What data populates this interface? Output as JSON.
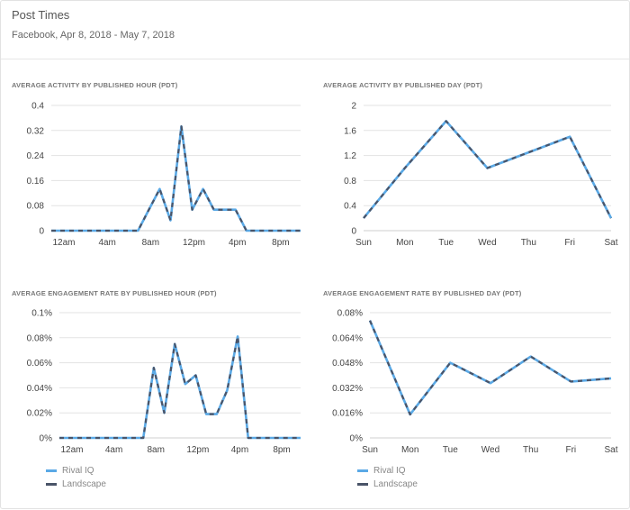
{
  "header": {
    "title": "Post Times",
    "subtitle": "Facebook, Apr 8, 2018 - May 7, 2018"
  },
  "colors": {
    "rival_iq": "#5aa9e6",
    "landscape": "#4a5468",
    "grid": "#e3e3e3",
    "axis": "#cfcfcf"
  },
  "legend": [
    {
      "label": "Rival IQ",
      "color": "#5aa9e6"
    },
    {
      "label": "Landscape",
      "color": "#4a5468"
    }
  ],
  "chart_data": [
    {
      "type": "line",
      "title": "AVERAGE ACTIVITY BY PUBLISHED HOUR (PDT)",
      "x": [
        0,
        1,
        2,
        3,
        4,
        5,
        6,
        7,
        8,
        9,
        10,
        11,
        12,
        13,
        14,
        15,
        16,
        17,
        18,
        19,
        20,
        21,
        22,
        23
      ],
      "x_ticks": [
        "12am",
        "4am",
        "8am",
        "12pm",
        "4pm",
        "8pm"
      ],
      "y_ticks": [
        "0",
        "0.08",
        "0.16",
        "0.24",
        "0.32",
        "0.4"
      ],
      "ylim": [
        0,
        0.4
      ],
      "series": [
        {
          "name": "Rival IQ",
          "values": [
            0,
            0,
            0,
            0,
            0,
            0,
            0,
            0,
            0,
            0.067,
            0.133,
            0.033,
            0.333,
            0.067,
            0.133,
            0.067,
            0.067,
            0.067,
            0,
            0,
            0,
            0,
            0,
            0
          ]
        },
        {
          "name": "Landscape",
          "values": [
            0,
            0,
            0,
            0,
            0,
            0,
            0,
            0,
            0,
            0.067,
            0.133,
            0.033,
            0.333,
            0.067,
            0.133,
            0.067,
            0.067,
            0.067,
            0,
            0,
            0,
            0,
            0,
            0
          ]
        }
      ]
    },
    {
      "type": "line",
      "title": "AVERAGE ACTIVITY BY PUBLISHED DAY (PDT)",
      "categories": [
        "Sun",
        "Mon",
        "Tue",
        "Wed",
        "Thu",
        "Fri",
        "Sat"
      ],
      "y_ticks": [
        "0",
        "0.4",
        "0.8",
        "1.2",
        "1.6",
        "2"
      ],
      "ylim": [
        0,
        2
      ],
      "series": [
        {
          "name": "Rival IQ",
          "values": [
            0.2,
            1.0,
            1.75,
            1.0,
            1.25,
            1.5,
            0.2
          ]
        },
        {
          "name": "Landscape",
          "values": [
            0.2,
            1.0,
            1.75,
            1.0,
            1.25,
            1.5,
            0.2
          ]
        }
      ]
    },
    {
      "type": "line",
      "title": "AVERAGE ENGAGEMENT RATE BY PUBLISHED HOUR (PDT)",
      "x": [
        0,
        1,
        2,
        3,
        4,
        5,
        6,
        7,
        8,
        9,
        10,
        11,
        12,
        13,
        14,
        15,
        16,
        17,
        18,
        19,
        20,
        21,
        22,
        23
      ],
      "x_ticks": [
        "12am",
        "4am",
        "8am",
        "12pm",
        "4pm",
        "8pm"
      ],
      "y_ticks": [
        "0%",
        "0.02%",
        "0.04%",
        "0.06%",
        "0.08%",
        "0.1%"
      ],
      "ylim": [
        0,
        0.1
      ],
      "series": [
        {
          "name": "Rival IQ",
          "values": [
            0,
            0,
            0,
            0,
            0,
            0,
            0,
            0,
            0,
            0.056,
            0.02,
            0.075,
            0.043,
            0.05,
            0.019,
            0.019,
            0.038,
            0.081,
            0,
            0,
            0,
            0,
            0,
            0
          ]
        },
        {
          "name": "Landscape",
          "values": [
            0,
            0,
            0,
            0,
            0,
            0,
            0,
            0,
            0,
            0.056,
            0.02,
            0.075,
            0.043,
            0.05,
            0.019,
            0.019,
            0.038,
            0.081,
            0,
            0,
            0,
            0,
            0,
            0
          ]
        }
      ]
    },
    {
      "type": "line",
      "title": "AVERAGE ENGAGEMENT RATE BY PUBLISHED DAY (PDT)",
      "categories": [
        "Sun",
        "Mon",
        "Tue",
        "Wed",
        "Thu",
        "Fri",
        "Sat"
      ],
      "y_ticks": [
        "0%",
        "0.016%",
        "0.032%",
        "0.048%",
        "0.064%",
        "0.08%"
      ],
      "ylim": [
        0,
        0.08
      ],
      "series": [
        {
          "name": "Rival IQ",
          "values": [
            0.075,
            0.015,
            0.048,
            0.035,
            0.052,
            0.036,
            0.038
          ]
        },
        {
          "name": "Landscape",
          "values": [
            0.075,
            0.015,
            0.048,
            0.035,
            0.052,
            0.036,
            0.038
          ]
        }
      ]
    }
  ]
}
